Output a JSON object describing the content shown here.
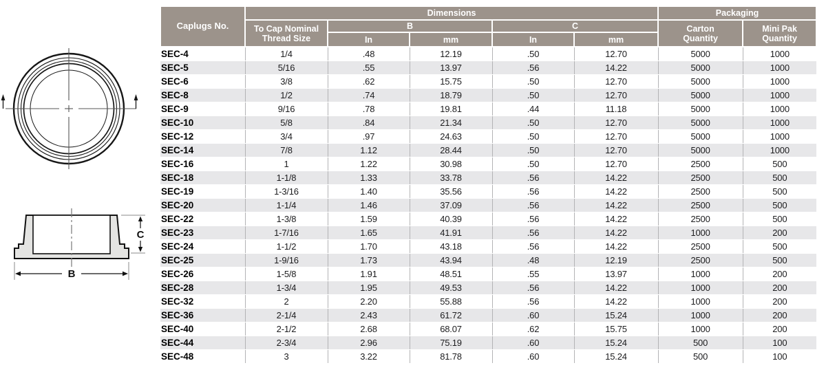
{
  "table": {
    "header": {
      "caplugs_no": "Caplugs No.",
      "thread_size": "To Cap Nominal\nThread Size",
      "dimensions": "Dimensions",
      "b": "B",
      "c": "C",
      "units": {
        "in": "In",
        "mm": "mm"
      },
      "packaging": "Packaging",
      "carton_quantity": "Carton\nQuantity",
      "mini_pak_quantity": "Mini Pak\nQuantity"
    },
    "rows": [
      [
        "SEC-4",
        "1/4",
        ".48",
        "12.19",
        ".50",
        "12.70",
        "5000",
        "1000"
      ],
      [
        "SEC-5",
        "5/16",
        ".55",
        "13.97",
        ".56",
        "14.22",
        "5000",
        "1000"
      ],
      [
        "SEC-6",
        "3/8",
        ".62",
        "15.75",
        ".50",
        "12.70",
        "5000",
        "1000"
      ],
      [
        "SEC-8",
        "1/2",
        ".74",
        "18.79",
        ".50",
        "12.70",
        "5000",
        "1000"
      ],
      [
        "SEC-9",
        "9/16",
        ".78",
        "19.81",
        ".44",
        "11.18",
        "5000",
        "1000"
      ],
      [
        "SEC-10",
        "5/8",
        ".84",
        "21.34",
        ".50",
        "12.70",
        "5000",
        "1000"
      ],
      [
        "SEC-12",
        "3/4",
        ".97",
        "24.63",
        ".50",
        "12.70",
        "5000",
        "1000"
      ],
      [
        "SEC-14",
        "7/8",
        "1.12",
        "28.44",
        ".50",
        "12.70",
        "5000",
        "1000"
      ],
      [
        "SEC-16",
        "1",
        "1.22",
        "30.98",
        ".50",
        "12.70",
        "2500",
        "500"
      ],
      [
        "SEC-18",
        "1-1/8",
        "1.33",
        "33.78",
        ".56",
        "14.22",
        "2500",
        "500"
      ],
      [
        "SEC-19",
        "1-3/16",
        "1.40",
        "35.56",
        ".56",
        "14.22",
        "2500",
        "500"
      ],
      [
        "SEC-20",
        "1-1/4",
        "1.46",
        "37.09",
        ".56",
        "14.22",
        "2500",
        "500"
      ],
      [
        "SEC-22",
        "1-3/8",
        "1.59",
        "40.39",
        ".56",
        "14.22",
        "2500",
        "500"
      ],
      [
        "SEC-23",
        "1-7/16",
        "1.65",
        "41.91",
        ".56",
        "14.22",
        "1000",
        "200"
      ],
      [
        "SEC-24",
        "1-1/2",
        "1.70",
        "43.18",
        ".56",
        "14.22",
        "2500",
        "500"
      ],
      [
        "SEC-25",
        "1-9/16",
        "1.73",
        "43.94",
        ".48",
        "12.19",
        "2500",
        "500"
      ],
      [
        "SEC-26",
        "1-5/8",
        "1.91",
        "48.51",
        ".55",
        "13.97",
        "1000",
        "200"
      ],
      [
        "SEC-28",
        "1-3/4",
        "1.95",
        "49.53",
        ".56",
        "14.22",
        "1000",
        "200"
      ],
      [
        "SEC-32",
        "2",
        "2.20",
        "55.88",
        ".56",
        "14.22",
        "1000",
        "200"
      ],
      [
        "SEC-36",
        "2-1/4",
        "2.43",
        "61.72",
        ".60",
        "15.24",
        "1000",
        "200"
      ],
      [
        "SEC-40",
        "2-1/2",
        "2.68",
        "68.07",
        ".62",
        "15.75",
        "1000",
        "200"
      ],
      [
        "SEC-44",
        "2-3/4",
        "2.96",
        "75.19",
        ".60",
        "15.24",
        "500",
        "100"
      ],
      [
        "SEC-48",
        "3",
        "3.22",
        "81.78",
        ".60",
        "15.24",
        "500",
        "100"
      ]
    ]
  },
  "diagrams": {
    "dim_b_label": "B",
    "dim_c_label": "C"
  },
  "colors": {
    "header_bg": "#9c938b",
    "row_stripe": "#e7e7e9",
    "grid_line": "#b3b3b5",
    "cap_fill": "#e4e4e2"
  }
}
